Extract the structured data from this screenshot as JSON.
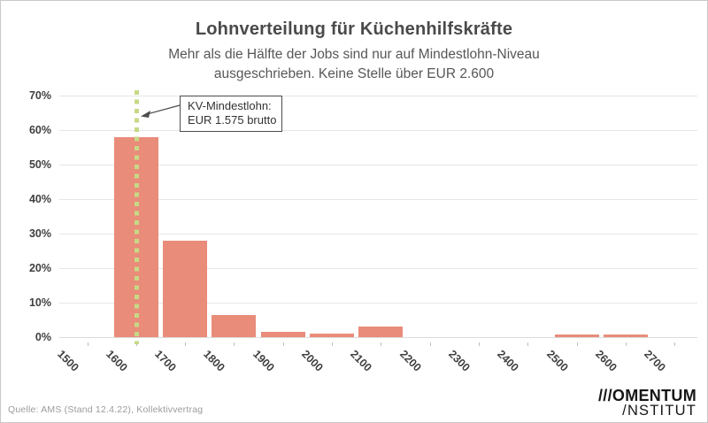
{
  "header": {
    "title": "Lohnverteilung für Küchenhilfskräfte",
    "subtitle_line1": "Mehr als die Hälfte der Jobs sind nur auf Mindestlohn-Niveau",
    "subtitle_line2": "ausgeschrieben. Keine Stelle über EUR 2.600"
  },
  "chart_data": {
    "type": "bar",
    "title": "Lohnverteilung für Küchenhilfskräfte",
    "categories": [
      "1500",
      "1600",
      "1700",
      "1800",
      "1900",
      "2000",
      "2100",
      "2200",
      "2300",
      "2400",
      "2500",
      "2600",
      "2700"
    ],
    "values": [
      0,
      58,
      28,
      6.5,
      1.5,
      1,
      3,
      0,
      0,
      0,
      0.8,
      0.8,
      0
    ],
    "xlabel": "",
    "ylabel": "",
    "ylim": [
      0,
      70
    ],
    "ytick_step": 10,
    "ytick_suffix": "%",
    "grid": true,
    "legend": "none",
    "bar_color": "#e98c7a",
    "reference_line": {
      "x_value": 1575,
      "label": "KV-Mindestlohn: EUR 1.575 brutto",
      "style": "dotted",
      "color": "#c6da85"
    }
  },
  "annotation": {
    "line1": "KV-Mindestlohn:",
    "line2": "EUR 1.575 brutto"
  },
  "footer": {
    "source": "Quelle: AMS (Stand 12.4.22), Kollektivvertrag",
    "logo_line1": "///OMENTUM",
    "logo_line2": "/NSTITUT"
  }
}
